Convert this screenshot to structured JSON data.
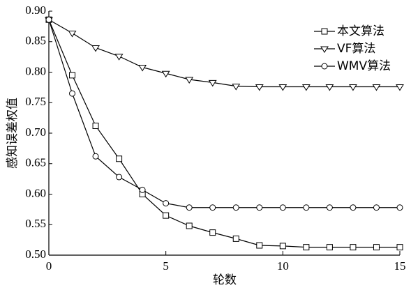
{
  "chart_data": {
    "type": "line",
    "x_label": "轮数",
    "y_label": "感知误差权值",
    "x": [
      0,
      1,
      2,
      3,
      4,
      5,
      6,
      7,
      8,
      9,
      10,
      11,
      12,
      13,
      14,
      15
    ],
    "xlim": [
      0,
      15
    ],
    "xticks": [
      0,
      5,
      10,
      15
    ],
    "ylim": [
      0.5,
      0.9
    ],
    "yticks": [
      {
        "value": 0.5,
        "label": "0.50"
      },
      {
        "value": 0.55,
        "label": "0.55"
      },
      {
        "value": 0.6,
        "label": "0.60"
      },
      {
        "value": 0.65,
        "label": "0.65"
      },
      {
        "value": 0.7,
        "label": "0.70"
      },
      {
        "value": 0.75,
        "label": "0.75"
      },
      {
        "value": 0.8,
        "label": "0.80"
      },
      {
        "value": 0.85,
        "label": "0.85"
      },
      {
        "value": 0.9,
        "label": "0.90"
      }
    ],
    "legend": "upper right",
    "series": [
      {
        "name": "本文算法",
        "color": "#000000",
        "marker": "square",
        "values": [
          0.886,
          0.795,
          0.712,
          0.658,
          0.6,
          0.565,
          0.548,
          0.537,
          0.527,
          0.516,
          0.515,
          0.513,
          0.513,
          0.513,
          0.513,
          0.513
        ]
      },
      {
        "name": "VF算法",
        "color": "#000000",
        "marker": "triangle",
        "values": [
          0.886,
          0.864,
          0.84,
          0.826,
          0.808,
          0.798,
          0.788,
          0.783,
          0.777,
          0.776,
          0.776,
          0.776,
          0.776,
          0.776,
          0.776,
          0.776
        ]
      },
      {
        "name": "WMV算法",
        "color": "#000000",
        "marker": "circle",
        "values": [
          0.886,
          0.765,
          0.662,
          0.628,
          0.607,
          0.585,
          0.578,
          0.578,
          0.578,
          0.578,
          0.578,
          0.578,
          0.578,
          0.578,
          0.578,
          0.578
        ]
      }
    ]
  }
}
